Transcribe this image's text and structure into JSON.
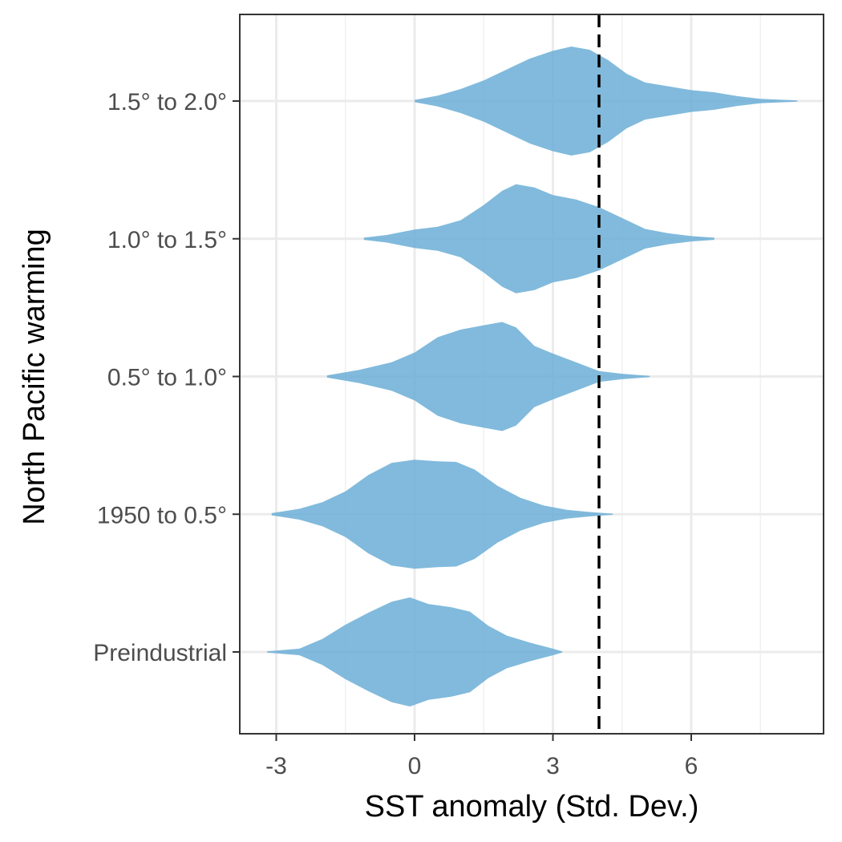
{
  "chart_data": {
    "type": "violin",
    "title": "",
    "xlabel": "SST anomaly (Std. Dev.)",
    "ylabel": "North Pacific warming",
    "xlim": [
      -3.6,
      8.9
    ],
    "x_ticks": [
      -3,
      0,
      3,
      6
    ],
    "x_tick_labels": [
      "-3",
      "0",
      "3",
      "6"
    ],
    "grid": true,
    "fill_color": "#6baed6",
    "fill_opacity": 0.85,
    "reference_line": {
      "x": 4,
      "style": "dashed",
      "color": "#000000"
    },
    "categories": [
      "1.5° to 2.0°",
      "1.0° to 1.5°",
      "0.5° to 1.0°",
      "1950 to 0.5°",
      "Preindustrial"
    ],
    "series": [
      {
        "category": "1.5° to 2.0°",
        "min": 0.0,
        "max": 8.3,
        "profile": [
          [
            0.0,
            0.02
          ],
          [
            0.5,
            0.1
          ],
          [
            1.0,
            0.22
          ],
          [
            1.5,
            0.38
          ],
          [
            2.0,
            0.58
          ],
          [
            2.5,
            0.78
          ],
          [
            3.0,
            0.92
          ],
          [
            3.4,
            1.0
          ],
          [
            3.8,
            0.94
          ],
          [
            4.2,
            0.75
          ],
          [
            4.6,
            0.5
          ],
          [
            5.0,
            0.34
          ],
          [
            5.5,
            0.27
          ],
          [
            6.0,
            0.2
          ],
          [
            6.5,
            0.16
          ],
          [
            7.0,
            0.09
          ],
          [
            7.5,
            0.04
          ],
          [
            8.3,
            0.01
          ]
        ]
      },
      {
        "category": "1.0° to 1.5°",
        "min": -1.1,
        "max": 6.5,
        "profile": [
          [
            -1.1,
            0.02
          ],
          [
            -0.6,
            0.07
          ],
          [
            0.0,
            0.17
          ],
          [
            0.5,
            0.22
          ],
          [
            1.0,
            0.34
          ],
          [
            1.5,
            0.62
          ],
          [
            1.9,
            0.88
          ],
          [
            2.2,
            1.0
          ],
          [
            2.6,
            0.94
          ],
          [
            3.0,
            0.8
          ],
          [
            3.5,
            0.72
          ],
          [
            4.0,
            0.58
          ],
          [
            4.5,
            0.38
          ],
          [
            5.0,
            0.18
          ],
          [
            5.5,
            0.1
          ],
          [
            6.0,
            0.05
          ],
          [
            6.5,
            0.02
          ]
        ]
      },
      {
        "category": "0.5° to 1.0°",
        "min": -1.9,
        "max": 5.1,
        "profile": [
          [
            -1.9,
            0.02
          ],
          [
            -1.2,
            0.12
          ],
          [
            -0.5,
            0.26
          ],
          [
            0.0,
            0.44
          ],
          [
            0.5,
            0.72
          ],
          [
            1.0,
            0.86
          ],
          [
            1.5,
            0.94
          ],
          [
            1.9,
            1.0
          ],
          [
            2.2,
            0.9
          ],
          [
            2.6,
            0.56
          ],
          [
            3.0,
            0.42
          ],
          [
            3.5,
            0.26
          ],
          [
            4.0,
            0.1
          ],
          [
            4.5,
            0.05
          ],
          [
            5.1,
            0.01
          ]
        ]
      },
      {
        "category": "1950 to 0.5°",
        "min": -3.1,
        "max": 4.3,
        "profile": [
          [
            -3.1,
            0.02
          ],
          [
            -2.5,
            0.1
          ],
          [
            -2.0,
            0.22
          ],
          [
            -1.5,
            0.42
          ],
          [
            -1.0,
            0.72
          ],
          [
            -0.5,
            0.94
          ],
          [
            0.0,
            1.0
          ],
          [
            0.5,
            0.97
          ],
          [
            0.9,
            0.96
          ],
          [
            1.3,
            0.82
          ],
          [
            1.8,
            0.52
          ],
          [
            2.3,
            0.3
          ],
          [
            2.8,
            0.16
          ],
          [
            3.3,
            0.08
          ],
          [
            3.8,
            0.04
          ],
          [
            4.3,
            0.01
          ]
        ]
      },
      {
        "category": "Preindustrial",
        "min": -3.2,
        "max": 3.2,
        "profile": [
          [
            -3.2,
            0.01
          ],
          [
            -2.5,
            0.06
          ],
          [
            -2.0,
            0.24
          ],
          [
            -1.5,
            0.5
          ],
          [
            -1.0,
            0.72
          ],
          [
            -0.5,
            0.92
          ],
          [
            -0.1,
            1.0
          ],
          [
            0.3,
            0.88
          ],
          [
            0.8,
            0.82
          ],
          [
            1.2,
            0.74
          ],
          [
            1.6,
            0.48
          ],
          [
            2.0,
            0.3
          ],
          [
            2.5,
            0.17
          ],
          [
            3.0,
            0.06
          ],
          [
            3.2,
            0.01
          ]
        ]
      }
    ]
  }
}
